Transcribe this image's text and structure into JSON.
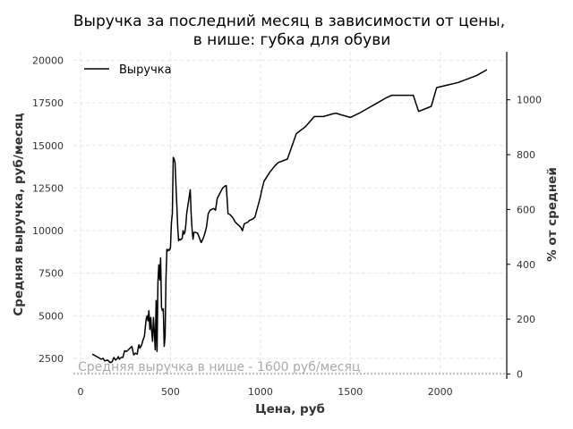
{
  "chart_data": {
    "type": "line",
    "title_line1": "Выручка за последний месяц в зависимости от цены,",
    "title_line2": "в нише: губка для обуви",
    "xlabel": "Цена, руб",
    "ylabel": "Средняя выручка, руб/месяц",
    "ylabel_right": "% от средней",
    "xlim": [
      -40,
      2370
    ],
    "ylim": [
      1500,
      20500
    ],
    "ylim_right": [
      -5,
      1175
    ],
    "x_ticks": [
      "0",
      "500",
      "1000",
      "1500",
      "2000"
    ],
    "y_ticks": [
      "2500",
      "5000",
      "7500",
      "10000",
      "12500",
      "15000",
      "17500",
      "20000"
    ],
    "y_right_ticks": [
      "0",
      "200",
      "400",
      "600",
      "800",
      "1000"
    ],
    "grid": true,
    "legend_position": "top-left",
    "series": [
      {
        "name": "Выручка",
        "color": "#000000",
        "x": [
          65,
          90,
          115,
          125,
          135,
          150,
          165,
          175,
          185,
          195,
          205,
          210,
          215,
          225,
          235,
          245,
          255,
          265,
          275,
          285,
          295,
          305,
          315,
          320,
          325,
          330,
          335,
          340,
          345,
          355,
          365,
          370,
          375,
          380,
          385,
          390,
          395,
          400,
          405,
          410,
          415,
          420,
          425,
          430,
          435,
          440,
          445,
          450,
          455,
          460,
          465,
          470,
          475,
          480,
          485,
          490,
          495,
          500,
          505,
          510,
          515,
          520,
          525,
          530,
          535,
          540,
          545,
          550,
          555,
          560,
          565,
          570,
          575,
          580,
          585,
          590,
          600,
          610,
          615,
          620,
          625,
          630,
          640,
          650,
          660,
          670,
          680,
          690,
          700,
          710,
          720,
          730,
          740,
          750,
          760,
          770,
          780,
          790,
          800,
          810,
          820,
          830,
          840,
          850,
          860,
          870,
          880,
          890,
          900,
          910,
          920,
          930,
          940,
          950,
          960,
          970,
          980,
          990,
          1000,
          1010,
          1020,
          1050,
          1080,
          1100,
          1150,
          1200,
          1250,
          1300,
          1350,
          1400,
          1420,
          1450,
          1500,
          1550,
          1600,
          1650,
          1700,
          1730,
          1800,
          1850,
          1880,
          1950,
          1980,
          2020,
          2100,
          2200,
          2260
        ],
        "y": [
          2750,
          2600,
          2450,
          2500,
          2350,
          2400,
          2250,
          2300,
          2550,
          2400,
          2500,
          2600,
          2450,
          2550,
          2550,
          2950,
          2900,
          3000,
          3100,
          3200,
          2700,
          2800,
          2750,
          3100,
          3300,
          3100,
          3200,
          3300,
          3500,
          3800,
          4800,
          5000,
          4700,
          5300,
          4200,
          4900,
          4100,
          3500,
          4900,
          4000,
          3000,
          5900,
          2900,
          7000,
          8000,
          7100,
          8400,
          5500,
          5300,
          5400,
          3200,
          3800,
          7200,
          8900,
          8800,
          8900,
          8850,
          9000,
          10500,
          11000,
          14300,
          14200,
          14000,
          12700,
          11500,
          10200,
          9400,
          9500,
          9450,
          9500,
          9550,
          10000,
          9800,
          9900,
          10300,
          11000,
          11700,
          12400,
          11000,
          10100,
          9500,
          9900,
          9900,
          9850,
          9600,
          9300,
          9500,
          9800,
          10200,
          11000,
          11200,
          11250,
          11300,
          11200,
          11900,
          12100,
          12300,
          12500,
          12600,
          12650,
          11000,
          10950,
          10850,
          10700,
          10500,
          10400,
          10300,
          10200,
          10000,
          10400,
          10450,
          10500,
          10600,
          10650,
          10700,
          10800,
          11200,
          11600,
          12000,
          12500,
          12900,
          13400,
          13800,
          14000,
          14200,
          15700,
          16100,
          16700,
          16700,
          16850,
          16900,
          16800,
          16650,
          16900,
          17200,
          17500,
          17800,
          17950,
          17950,
          17950,
          17000,
          17300,
          18400,
          18500,
          18700,
          19100,
          19450
        ]
      }
    ],
    "reference_line": {
      "label": "Средняя выручка в нише - 1600 руб/месяц",
      "value": 1600,
      "color": "#aaaaaa"
    }
  }
}
